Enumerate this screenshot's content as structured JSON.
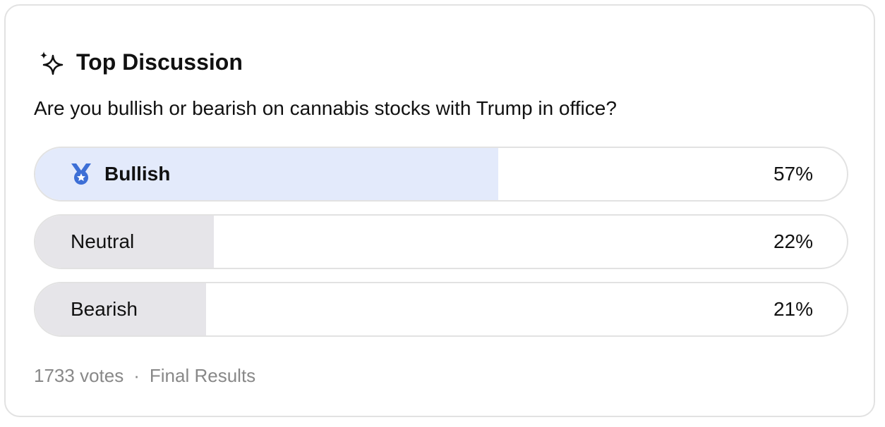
{
  "header": {
    "title": "Top Discussion"
  },
  "question": "Are you bullish or bearish on cannabis stocks with Trump in office?",
  "poll": {
    "options": [
      {
        "label": "Bullish",
        "value": 57,
        "value_label": "57%"
      },
      {
        "label": "Neutral",
        "value": 22,
        "value_label": "22%"
      },
      {
        "label": "Bearish",
        "value": 21,
        "value_label": "21%"
      }
    ]
  },
  "footer": {
    "votes": "1733 votes",
    "status": "Final Results"
  }
}
